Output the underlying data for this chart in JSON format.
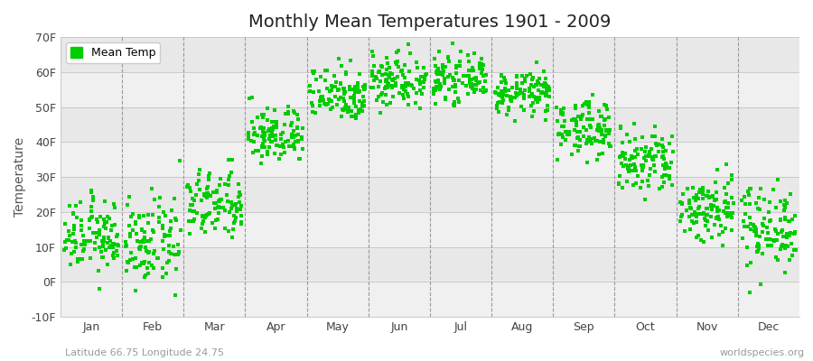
{
  "title": "Monthly Mean Temperatures 1901 - 2009",
  "ylabel": "Temperature",
  "subtitle": "Latitude 66.75 Longitude 24.75",
  "watermark": "worldspecies.org",
  "legend_label": "Mean Temp",
  "dot_color": "#00cc00",
  "bg_color": "#ffffff",
  "band_colors": [
    "#f0f0f0",
    "#e8e8e8"
  ],
  "ylim": [
    -10,
    70
  ],
  "yticks": [
    -10,
    0,
    10,
    20,
    30,
    40,
    50,
    60,
    70
  ],
  "ytick_labels": [
    "-10F",
    "0F",
    "10F",
    "20F",
    "30F",
    "40F",
    "50F",
    "60F",
    "70F"
  ],
  "months": [
    "Jan",
    "Feb",
    "Mar",
    "Apr",
    "May",
    "Jun",
    "Jul",
    "Aug",
    "Sep",
    "Oct",
    "Nov",
    "Dec"
  ],
  "monthly_means": [
    13,
    11,
    22,
    42,
    54,
    58,
    58,
    54,
    44,
    34,
    21,
    16
  ],
  "monthly_stds": [
    5,
    6,
    5,
    4,
    4,
    4,
    3,
    3,
    4,
    5,
    5,
    6
  ],
  "n_years": 109,
  "seed": 12345,
  "dot_size": 6,
  "title_fontsize": 14,
  "tick_fontsize": 9,
  "ylabel_fontsize": 10
}
